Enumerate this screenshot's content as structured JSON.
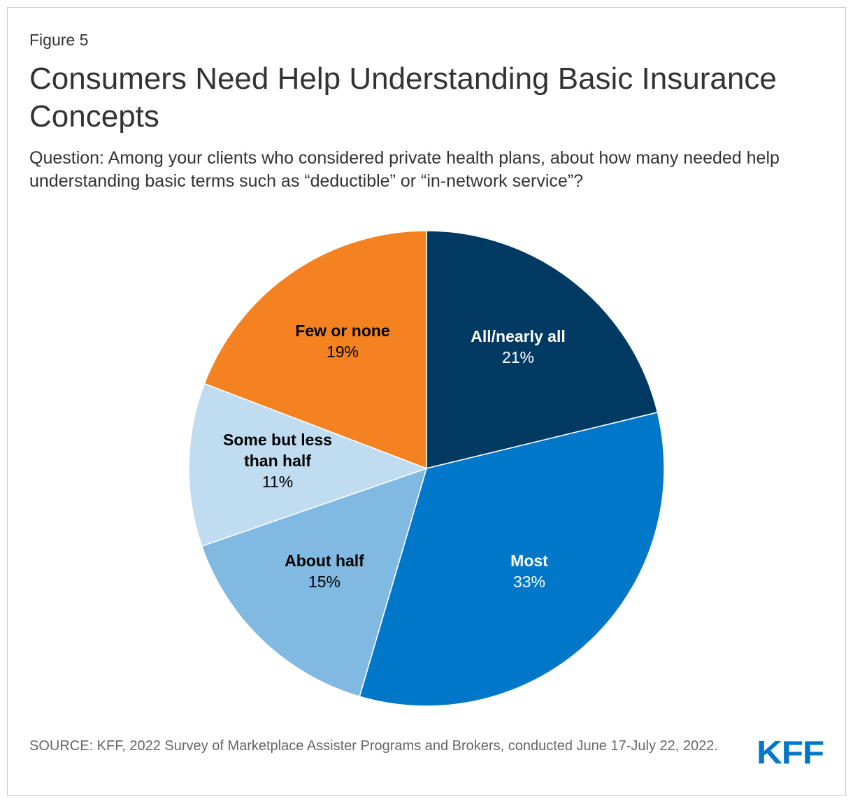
{
  "figure_label": "Figure 5",
  "title": "Consumers Need Help Understanding Basic Insurance Concepts",
  "subtitle": "Question: Among your clients who considered private health plans, about how many needed help understanding basic terms such as “deductible” or “in-network service”?",
  "source": "SOURCE: KFF, 2022 Survey of Marketplace Assister Programs and Brokers, conducted June 17-July 22, 2022.",
  "logo_text": "KFF",
  "chart_data": {
    "type": "pie",
    "title": "Consumers Need Help Understanding Basic Insurance Concepts",
    "slices": [
      {
        "label": "All/nearly all",
        "value": 21,
        "value_label": "21%",
        "color": "#003a63",
        "text_color": "#ffffff"
      },
      {
        "label": "Most",
        "value": 33,
        "value_label": "33%",
        "color": "#0077c8",
        "text_color": "#ffffff"
      },
      {
        "label": "About half",
        "value": 15,
        "value_label": "15%",
        "color": "#80b9e1",
        "text_color": "#000000"
      },
      {
        "label": "Some but less than half",
        "value": 11,
        "value_label": "11%",
        "color": "#bfdcf0",
        "text_color": "#000000"
      },
      {
        "label": "Few or none",
        "value": 19,
        "value_label": "19%",
        "color": "#f58220",
        "text_color": "#000000"
      }
    ],
    "start": "12 o'clock",
    "direction": "clockwise"
  }
}
